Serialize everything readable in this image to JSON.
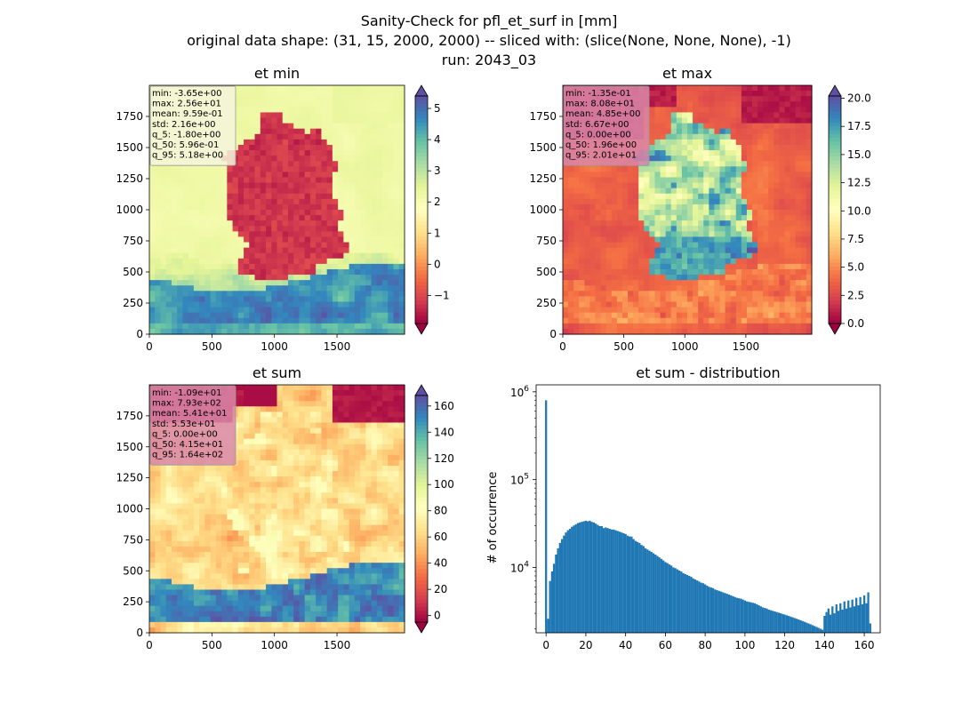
{
  "figure": {
    "title_lines": [
      "Sanity-Check for pfl_et_surf in [mm]",
      "original data shape: (31, 15, 2000, 2000) -- sliced with: (slice(None, None, None), -1)",
      "run: 2043_03"
    ]
  },
  "chart_data": [
    {
      "type": "heatmap",
      "title": "et min",
      "xticks": [
        "0",
        "500",
        "1000",
        "1500"
      ],
      "yticks": [
        "0",
        "250",
        "500",
        "750",
        "1000",
        "1250",
        "1500",
        "1750"
      ],
      "xlim": [
        0,
        2000
      ],
      "ylim": [
        0,
        2000
      ],
      "colormap": "Spectral",
      "colorbar": {
        "ticks": [
          "−1",
          "0",
          "1",
          "2",
          "3",
          "4",
          "5"
        ],
        "range": [
          -1.9,
          5.4
        ],
        "extend": "both"
      },
      "stats": [
        "min: -3.65e+00",
        "max: 2.56e+01",
        "mean: 9.59e-01",
        "std: 2.16e+00",
        "q_5: -1.80e+00",
        "q_50: 5.96e-01",
        "q_95: 5.18e+00"
      ],
      "stats_box_color": "#f5f5dc"
    },
    {
      "type": "heatmap",
      "title": "et max",
      "xticks": [
        "0",
        "500",
        "1000",
        "1500"
      ],
      "yticks": [
        "0",
        "250",
        "500",
        "750",
        "1000",
        "1250",
        "1500",
        "1750"
      ],
      "xlim": [
        0,
        2000
      ],
      "ylim": [
        0,
        2000
      ],
      "colormap": "Spectral",
      "colorbar": {
        "ticks": [
          "0.0",
          "2.5",
          "5.0",
          "7.5",
          "10.0",
          "12.5",
          "15.0",
          "17.5",
          "20.0"
        ],
        "range": [
          0,
          20.2
        ],
        "extend": "both"
      },
      "stats": [
        "min: -1.35e-01",
        "max: 8.08e+01",
        "mean: 4.85e+00",
        "std: 6.67e+00",
        "q_5: 0.00e+00",
        "q_50: 1.96e+00",
        "q_95: 2.01e+01"
      ],
      "stats_box_color": "#d987a8"
    },
    {
      "type": "heatmap",
      "title": "et sum",
      "xticks": [
        "0",
        "500",
        "1000",
        "1500"
      ],
      "yticks": [
        "0",
        "250",
        "500",
        "750",
        "1000",
        "1250",
        "1500",
        "1750"
      ],
      "xlim": [
        0,
        2000
      ],
      "ylim": [
        0,
        2000
      ],
      "colormap": "Spectral",
      "colorbar": {
        "ticks": [
          "0",
          "20",
          "40",
          "60",
          "80",
          "100",
          "120",
          "140",
          "160"
        ],
        "range": [
          -5,
          168
        ],
        "extend": "both"
      },
      "stats": [
        "min: -1.09e+01",
        "max: 7.93e+02",
        "mean: 5.41e+01",
        "std: 5.53e+01",
        "q_5: 0.00e+00",
        "q_50: 4.15e+01",
        "q_95: 1.64e+02"
      ],
      "stats_box_color": "#d987a8"
    },
    {
      "type": "bar",
      "title": "et sum - distribution",
      "ylabel": "# of occurrence",
      "xlabel": "",
      "yscale": "log",
      "xlim": [
        -5,
        168
      ],
      "ylim": [
        1800,
        1200000
      ],
      "xticks": [
        "0",
        "20",
        "40",
        "60",
        "80",
        "100",
        "120",
        "140",
        "160"
      ],
      "yticks": [
        "10^4",
        "10^5",
        "10^6"
      ],
      "bar_color": "#1f77b4",
      "x": [
        0,
        1,
        2,
        3,
        4,
        5,
        6,
        7,
        8,
        9,
        10,
        11,
        12,
        13,
        14,
        15,
        16,
        17,
        18,
        19,
        20,
        21,
        22,
        23,
        24,
        25,
        26,
        27,
        28,
        29,
        30,
        31,
        32,
        33,
        34,
        35,
        36,
        37,
        38,
        39,
        40,
        41,
        42,
        43,
        44,
        45,
        46,
        47,
        48,
        49,
        50,
        51,
        52,
        53,
        54,
        55,
        56,
        57,
        58,
        59,
        60,
        61,
        62,
        63,
        64,
        65,
        66,
        67,
        68,
        69,
        70,
        71,
        72,
        73,
        74,
        75,
        76,
        77,
        78,
        79,
        80,
        81,
        82,
        83,
        84,
        85,
        86,
        87,
        88,
        89,
        90,
        91,
        92,
        93,
        94,
        95,
        96,
        97,
        98,
        99,
        100,
        101,
        102,
        103,
        104,
        105,
        106,
        107,
        108,
        109,
        110,
        111,
        112,
        113,
        114,
        115,
        116,
        117,
        118,
        119,
        120,
        121,
        122,
        123,
        124,
        125,
        126,
        127,
        128,
        129,
        130,
        131,
        132,
        133,
        134,
        135,
        136,
        137,
        138,
        139,
        140,
        141,
        142,
        143,
        144,
        145,
        146,
        147,
        148,
        149,
        150,
        151,
        152,
        153,
        154,
        155,
        156,
        157,
        158,
        159,
        160,
        161,
        162,
        163
      ],
      "values": [
        800000,
        2600,
        7000,
        9000,
        11000,
        14000,
        16500,
        19000,
        21000,
        23000,
        25000,
        26500,
        27500,
        29000,
        30000,
        31000,
        32000,
        32500,
        33000,
        33500,
        34000,
        33500,
        34000,
        33000,
        32500,
        31500,
        30500,
        29500,
        29500,
        28000,
        28500,
        28000,
        27500,
        27000,
        27000,
        26500,
        26000,
        25500,
        25000,
        24500,
        24000,
        23000,
        22500,
        22500,
        21000,
        20000,
        19500,
        19000,
        18000,
        17500,
        16500,
        16000,
        15500,
        15000,
        14500,
        14000,
        13500,
        13000,
        12500,
        12000,
        11500,
        11200,
        10800,
        10500,
        10000,
        9800,
        9500,
        9200,
        9000,
        8600,
        8400,
        8200,
        8000,
        7800,
        7500,
        7300,
        7100,
        6900,
        6700,
        6600,
        6400,
        6200,
        6000,
        5900,
        5800,
        5600,
        5500,
        5400,
        5300,
        5200,
        5100,
        5000,
        4900,
        4800,
        4700,
        4600,
        4500,
        4450,
        4400,
        4300,
        4200,
        4100,
        4050,
        4000,
        3950,
        3900,
        3800,
        3700,
        3600,
        3500,
        3450,
        3400,
        3300,
        3250,
        3200,
        3150,
        3100,
        3050,
        3000,
        2950,
        2900,
        2850,
        2800,
        2750,
        2700,
        2650,
        2600,
        2550,
        2500,
        2450,
        2400,
        2350,
        2300,
        2250,
        2200,
        2150,
        2100,
        2050,
        2000,
        1950,
        2800,
        3100,
        3400,
        2900,
        3600,
        3000,
        3800,
        3200,
        3900,
        3300,
        4100,
        3400,
        4200,
        3500,
        4300,
        3600,
        4500,
        3700,
        4600,
        3800,
        4800,
        3900,
        5200,
        2300
      ]
    }
  ]
}
